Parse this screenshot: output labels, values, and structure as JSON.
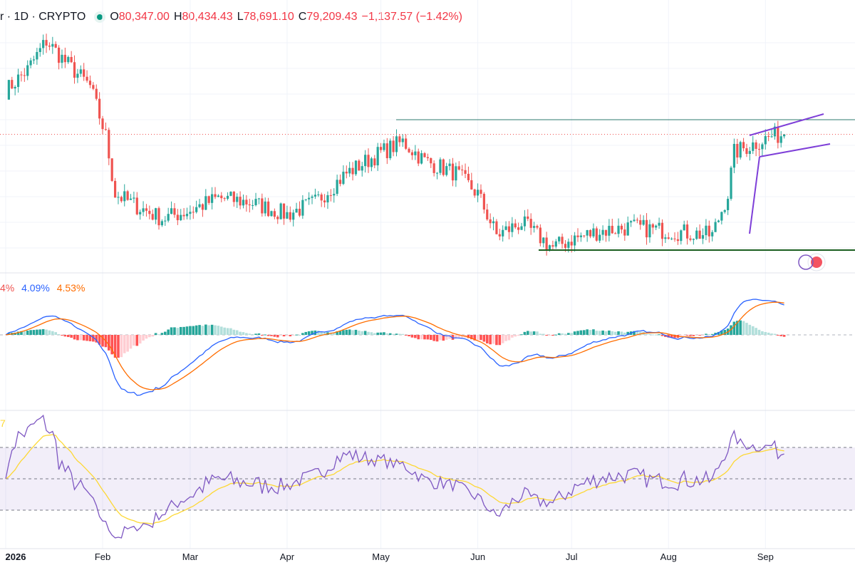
{
  "header": {
    "symbol_fragment": "r · 1D · CRYPTO",
    "open_label": "O",
    "open": "80,347.00",
    "high_label": "H",
    "high": "80,434.43",
    "low_label": "L",
    "low": "78,691.10",
    "close_label": "C",
    "close": "79,209.43",
    "change": "−1,137.57 (−1.42%)"
  },
  "macd_header": {
    "v1": "4%",
    "v2": "4.09%",
    "v3": "4.53%"
  },
  "rsi_header": {
    "v1": "7"
  },
  "colors": {
    "up": "#26a69a",
    "down": "#ef5350",
    "macd_line": "#2962ff",
    "signal_line": "#ff6d00",
    "rsi_line": "#7e57c2",
    "rsi_ma": "#fdd835",
    "hist_up_strong": "#26a69a",
    "hist_up_weak": "#b2dfdb",
    "hist_down_strong": "#ff5252",
    "hist_down_weak": "#ffcdd2",
    "resistance": "#2c7a6c",
    "support": "#1b5e20",
    "channel": "#7e3fd8"
  },
  "chart_data": [
    {
      "type": "candlestick",
      "x_tick_labels": [
        "2026",
        "Feb",
        "Mar",
        "Apr",
        "May",
        "Jun",
        "Jul",
        "Aug",
        "Sep"
      ],
      "series_name": "",
      "close_path_approx": [
        [
          "2026-01-01",
          84500
        ],
        [
          "2026-01-08",
          87000
        ],
        [
          "2026-01-14",
          90500
        ],
        [
          "2026-01-20",
          88000
        ],
        [
          "2026-01-28",
          85000
        ],
        [
          "2026-02-02",
          79000
        ],
        [
          "2026-02-05",
          72000
        ],
        [
          "2026-02-12",
          70500
        ],
        [
          "2026-02-20",
          69000
        ],
        [
          "2026-03-01",
          70000
        ],
        [
          "2026-03-10",
          71500
        ],
        [
          "2026-03-20",
          71000
        ],
        [
          "2026-04-01",
          69500
        ],
        [
          "2026-04-10",
          71000
        ],
        [
          "2026-04-20",
          74500
        ],
        [
          "2026-05-01",
          77000
        ],
        [
          "2026-05-08",
          78300
        ],
        [
          "2026-05-15",
          76000
        ],
        [
          "2026-05-25",
          74500
        ],
        [
          "2026-06-01",
          72000
        ],
        [
          "2026-06-07",
          67000
        ],
        [
          "2026-06-15",
          68500
        ],
        [
          "2026-06-25",
          65500
        ],
        [
          "2026-07-01",
          66500
        ],
        [
          "2026-07-10",
          67500
        ],
        [
          "2026-07-20",
          68000
        ],
        [
          "2026-08-01",
          67500
        ],
        [
          "2026-08-15",
          67000
        ],
        [
          "2026-08-20",
          72000
        ],
        [
          "2026-08-22",
          77000
        ],
        [
          "2026-08-28",
          78000
        ],
        [
          "2026-09-03",
          79000
        ],
        [
          "2026-09-07",
          79209
        ]
      ],
      "last_close": 79209.43,
      "annotations": [
        "horizontal resistance line",
        "horizontal support line",
        "rising channel (flag)"
      ]
    },
    {
      "type": "line",
      "indicator": "MACD",
      "series": [
        {
          "name": "MACD",
          "color": "#2962ff"
        },
        {
          "name": "Signal",
          "color": "#ff6d00"
        },
        {
          "name": "Histogram"
        }
      ]
    },
    {
      "type": "line",
      "indicator": "RSI",
      "bands": [
        30,
        70
      ],
      "series": [
        {
          "name": "RSI",
          "color": "#7e57c2"
        },
        {
          "name": "RSI-MA",
          "color": "#fdd835"
        }
      ]
    }
  ]
}
